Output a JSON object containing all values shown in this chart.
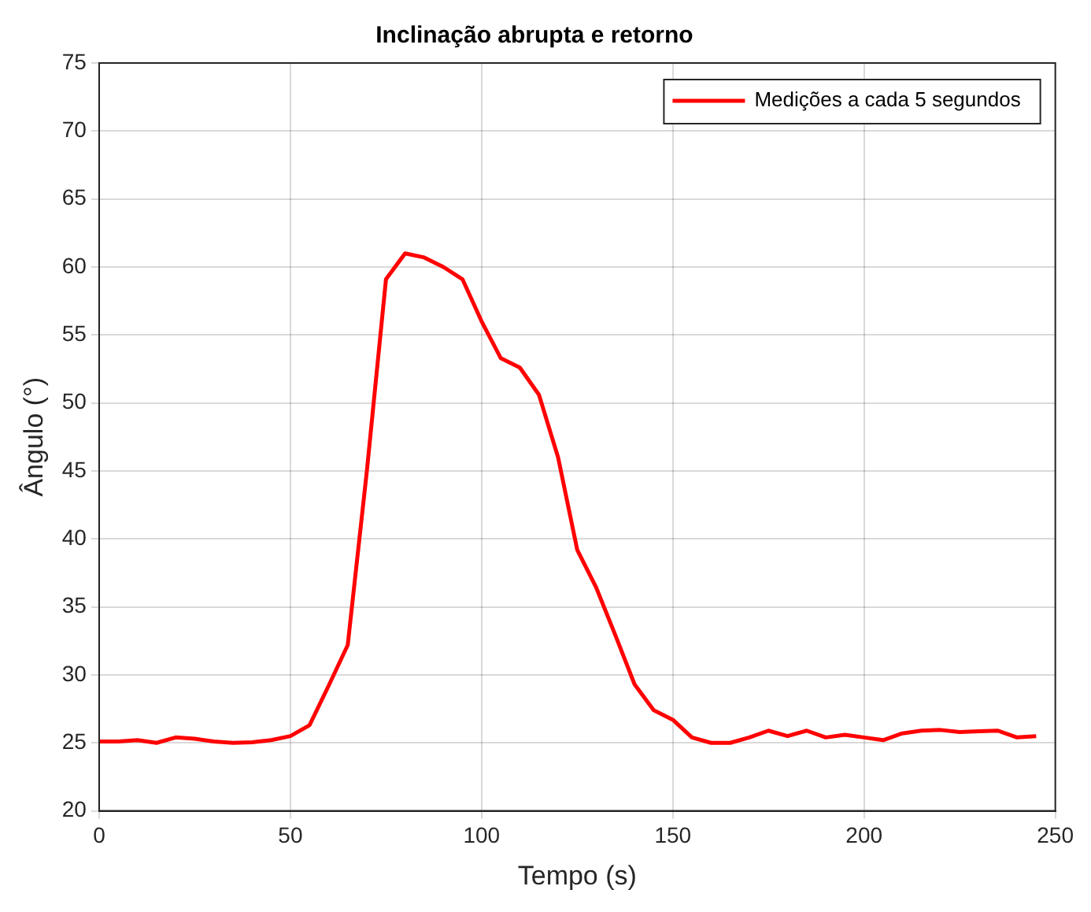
{
  "chart_data": {
    "type": "line",
    "title": "Inclinação abrupta e retorno",
    "xlabel": "Tempo (s)",
    "ylabel": "Ângulo (°)",
    "x": [
      0,
      5,
      10,
      15,
      20,
      25,
      30,
      35,
      40,
      45,
      50,
      55,
      60,
      65,
      70,
      75,
      80,
      85,
      90,
      95,
      100,
      105,
      110,
      115,
      120,
      125,
      130,
      135,
      140,
      145,
      150,
      155,
      160,
      165,
      170,
      175,
      180,
      185,
      190,
      195,
      200,
      205,
      210,
      215,
      220,
      225,
      230,
      235,
      240,
      245
    ],
    "series": [
      {
        "name": "Medições a cada 5 segundos",
        "color": "#ff0000",
        "values": [
          25.1,
          25.1,
          25.2,
          25.0,
          25.4,
          25.3,
          25.1,
          25.0,
          25.05,
          25.2,
          25.5,
          26.3,
          29.2,
          32.2,
          45.0,
          59.1,
          61.0,
          60.7,
          60.0,
          59.1,
          56.0,
          53.3,
          52.6,
          50.6,
          46.0,
          39.2,
          36.4,
          32.9,
          29.3,
          27.4,
          26.7,
          25.4,
          25.0,
          25.0,
          25.4,
          25.9,
          25.5,
          25.9,
          25.4,
          25.6,
          25.4,
          25.2,
          25.7,
          25.9,
          25.95,
          25.8,
          25.85,
          25.9,
          25.4,
          25.5
        ]
      }
    ],
    "xlim": [
      0,
      250
    ],
    "xticks": [
      0,
      50,
      100,
      150,
      200,
      250
    ],
    "ylim": [
      20,
      75
    ],
    "yticks": [
      20,
      25,
      30,
      35,
      40,
      45,
      50,
      55,
      60,
      65,
      70,
      75
    ],
    "grid": true,
    "legend": "top right"
  }
}
